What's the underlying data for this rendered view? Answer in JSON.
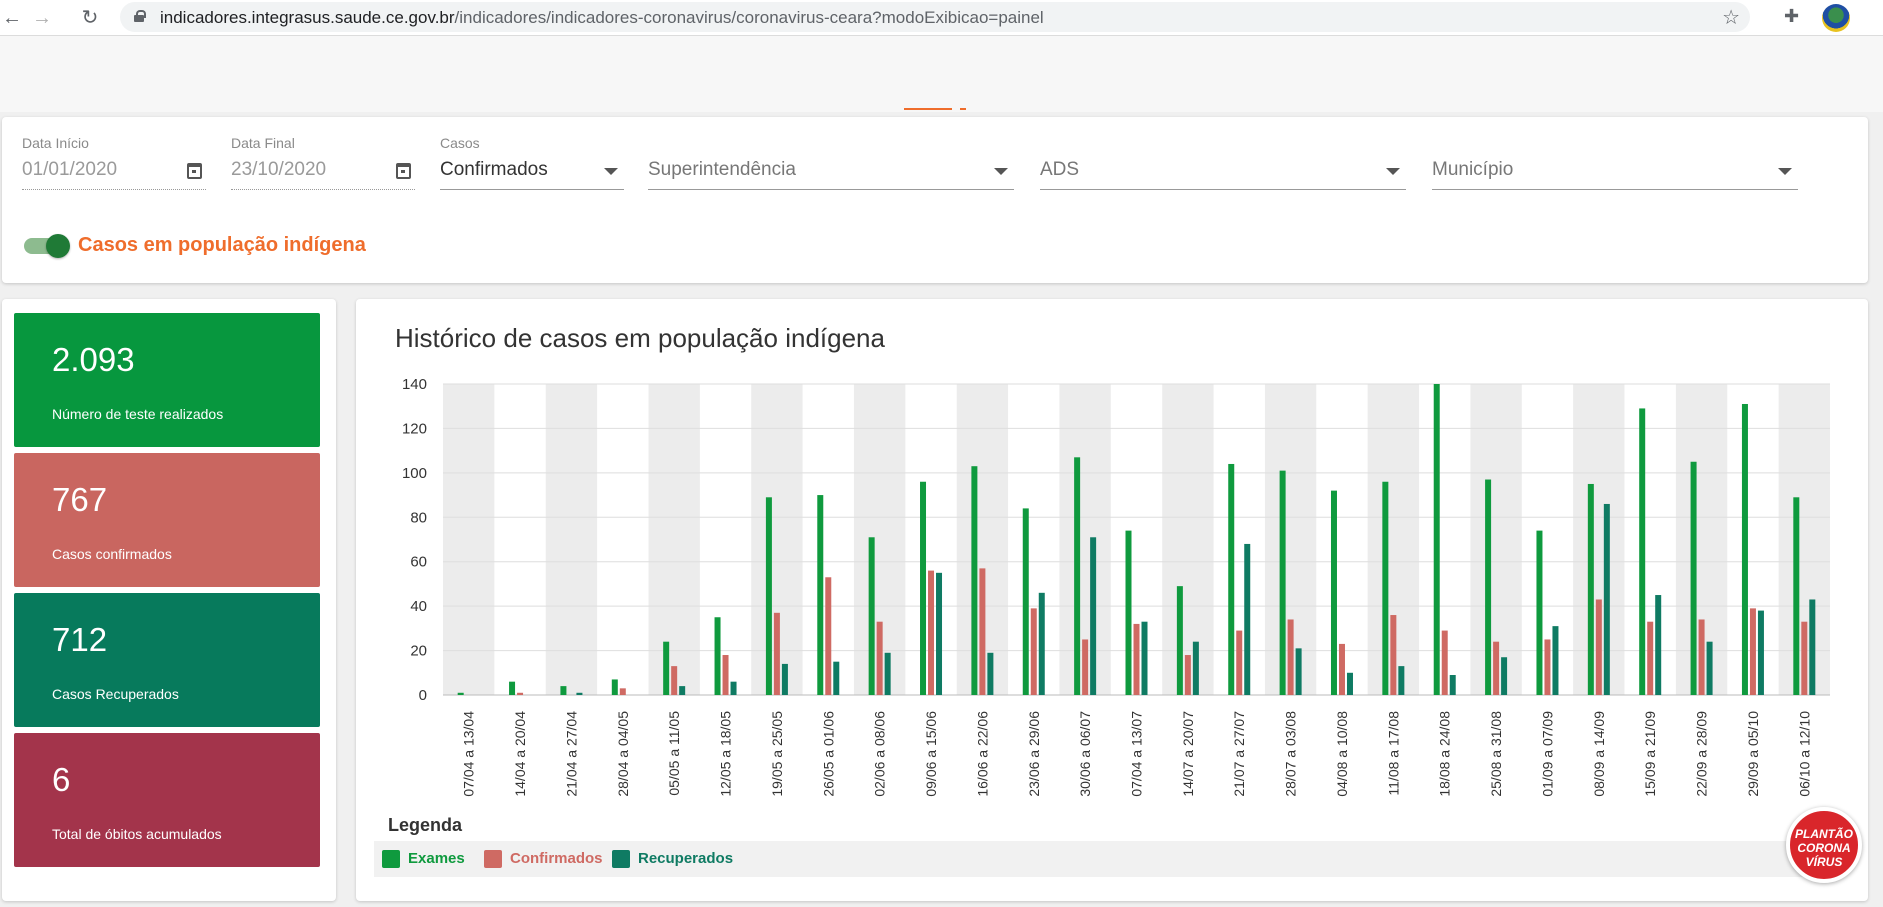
{
  "browser": {
    "url_host": "indicadores.integrasus.saude.ce.gov.br",
    "url_path": "/indicadores/indicadores-coronavirus/coronavirus-ceara?modoExibicao=painel"
  },
  "filters": {
    "data_inicio": {
      "label": "Data Início",
      "value": "01/01/2020"
    },
    "data_final": {
      "label": "Data Final",
      "value": "23/10/2020"
    },
    "casos": {
      "label": "Casos",
      "value": "Confirmados"
    },
    "superintendencia": {
      "placeholder": "Superintendência"
    },
    "ads": {
      "placeholder": "ADS"
    },
    "municipio": {
      "placeholder": "Município"
    },
    "toggle_label": "Casos em população indígena",
    "toggle_on": true
  },
  "cards": [
    {
      "value": "2.093",
      "label": "Número de teste realizados",
      "color": "#07973e"
    },
    {
      "value": "767",
      "label": "Casos confirmados",
      "color": "#c96660"
    },
    {
      "value": "712",
      "label": "Casos Recuperados",
      "color": "#077a5c"
    },
    {
      "value": "6",
      "label": "Total de óbitos acumulados",
      "color": "#a3344b"
    }
  ],
  "colors": {
    "exames": "#0f9a3e",
    "confirmados": "#cf6a63",
    "recuperados": "#0f7b63",
    "accent": "#ef6d2c"
  },
  "chart_data": {
    "type": "bar",
    "title": "Histórico de casos em população indígena",
    "categories": [
      "07/04 a 13/04",
      "14/04 a 20/04",
      "21/04 a 27/04",
      "28/04 a 04/05",
      "05/05 a 11/05",
      "12/05 a 18/05",
      "19/05 a 25/05",
      "26/05 a 01/06",
      "02/06 a 08/06",
      "09/06 a 15/06",
      "16/06 a 22/06",
      "23/06 a 29/06",
      "30/06 a 06/07",
      "07/04 a 13/07",
      "14/07 a 20/07",
      "21/07 a 27/07",
      "28/07 a 03/08",
      "04/08 a 10/08",
      "11/08 a 17/08",
      "18/08 a 24/08",
      "25/08 a 31/08",
      "01/09 a 07/09",
      "08/09 a 14/09",
      "15/09 a 21/09",
      "22/09 a 28/09",
      "29/09 a 05/10",
      "06/10 a 12/10"
    ],
    "series": [
      {
        "name": "Exames",
        "values": [
          1,
          6,
          4,
          7,
          24,
          35,
          89,
          90,
          71,
          96,
          103,
          84,
          107,
          74,
          49,
          104,
          101,
          92,
          96,
          140,
          97,
          74,
          95,
          129,
          105,
          131,
          89
        ]
      },
      {
        "name": "Confirmados",
        "values": [
          0,
          1,
          0,
          3,
          13,
          18,
          37,
          53,
          33,
          56,
          57,
          39,
          25,
          32,
          18,
          29,
          34,
          23,
          36,
          29,
          24,
          25,
          43,
          33,
          34,
          39,
          33
        ]
      },
      {
        "name": "Recuperados",
        "values": [
          0,
          0,
          1,
          0,
          4,
          6,
          14,
          15,
          19,
          55,
          19,
          46,
          71,
          33,
          24,
          68,
          21,
          10,
          13,
          9,
          17,
          31,
          86,
          45,
          24,
          38,
          43
        ]
      }
    ],
    "ylim": [
      0,
      140
    ],
    "yticks": [
      0,
      20,
      40,
      60,
      80,
      100,
      120,
      140
    ],
    "grid": true,
    "alternating_column_bands": true,
    "legend": {
      "title": "Legenda",
      "placement": "bottom-left"
    }
  },
  "badge": {
    "line1": "PLANTÃO",
    "line2": "CORONA",
    "line3": "VÍRUS"
  }
}
